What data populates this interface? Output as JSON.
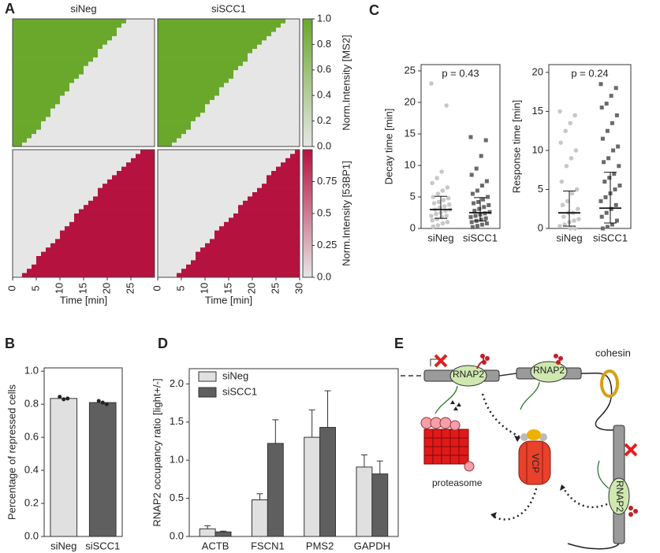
{
  "panel_labels": [
    "A",
    "B",
    "C",
    "D",
    "E"
  ],
  "chart_data": [
    {
      "type": "heatmap",
      "xlim": [
        0,
        30
      ],
      "fill": "before",
      "colorbar": {
        "label": "Norm.Intensity [MS2]",
        "lim": [
          0,
          1
        ],
        "colors": [
          "#e6e6e6",
          "#6aa82c"
        ],
        "ticks": [
          {
            "value": 0,
            "label": "0.0"
          },
          0.2,
          0.4,
          0.6,
          0.8,
          {
            "value": 1,
            "label": "1.0"
          }
        ]
      },
      "panels": [
        {
          "title": "siNeg",
          "rows": [
            24,
            23,
            22,
            22,
            21,
            20,
            19,
            18,
            18,
            17,
            16,
            15,
            15,
            14,
            13,
            12,
            12,
            11,
            10,
            10,
            9,
            8,
            8,
            7,
            6,
            6,
            5,
            4,
            3,
            2
          ]
        },
        {
          "title": "siSCC1",
          "rows": [
            27,
            26,
            25,
            24,
            23,
            22,
            21,
            20,
            19,
            19,
            18,
            17,
            16,
            16,
            15,
            14,
            13,
            13,
            12,
            11,
            10,
            10,
            9,
            8,
            7,
            7,
            6,
            5,
            4,
            3
          ]
        }
      ]
    },
    {
      "type": "heatmap",
      "xlim": [
        0,
        30
      ],
      "fill": "after",
      "colorbar": {
        "label": "Norm.Intensity [53BP1]",
        "lim": [
          0,
          1
        ],
        "colors": [
          "#e6e6e6",
          "#b5123f"
        ],
        "ticks": [
          {
            "value": 0,
            "label": "0.0"
          },
          0.25,
          0.5,
          0.75
        ]
      },
      "panels": [
        {
          "rows": [
            27,
            26,
            25,
            24,
            23,
            22,
            21,
            20,
            19,
            18,
            18,
            17,
            16,
            15,
            14,
            13,
            13,
            12,
            11,
            10,
            10,
            9,
            8,
            7,
            6,
            5,
            5,
            4,
            3,
            2
          ],
          "xticks": [
            0,
            5,
            10,
            15,
            20,
            25
          ],
          "xlabel": "Time [min]"
        },
        {
          "rows": [
            29,
            28,
            27,
            26,
            25,
            24,
            23,
            23,
            22,
            21,
            20,
            19,
            18,
            17,
            17,
            16,
            15,
            14,
            13,
            12,
            12,
            11,
            10,
            9,
            8,
            8,
            7,
            6,
            5,
            4
          ],
          "xticks": [
            0,
            5,
            10,
            15,
            20,
            25,
            30
          ],
          "xlabel": "Time [min]"
        }
      ]
    },
    {
      "type": "bar",
      "ylabel": "Percentage of repressed cells",
      "categories": [
        "siNeg",
        "siSCC1"
      ],
      "values": [
        0.835,
        0.81
      ],
      "colors": [
        "#e0e0e0",
        "#5f5f5f"
      ],
      "points": [
        [
          0.845,
          0.83,
          0.835
        ],
        [
          0.82,
          0.81,
          0.8
        ]
      ],
      "ylim": [
        0,
        1.02
      ],
      "yticks": [
        {
          "value": 0,
          "label": "0.0"
        },
        0.2,
        0.4,
        0.6,
        0.8,
        {
          "value": 1,
          "label": "1.0"
        }
      ]
    },
    {
      "type": "scatter",
      "ylabel": "Decay time [min]",
      "annotation": "p = 0.43",
      "categories": [
        "siNeg",
        "siSCC1"
      ],
      "groups": [
        {
          "color": "#c8c8c8",
          "marker": "circle",
          "values": [
            23,
            19.5,
            9,
            8,
            7.2,
            6.5,
            6,
            5.5,
            5,
            4.8,
            4.5,
            4.2,
            4,
            3.8,
            3.5,
            3.3,
            3,
            3,
            2.8,
            2.5,
            2.3,
            2,
            2,
            1.8,
            1.5,
            1.3,
            1,
            0.8,
            0.5,
            0.3
          ]
        },
        {
          "color": "#6a6a6a",
          "marker": "square",
          "values": [
            14.5,
            14,
            11.5,
            9.5,
            8.5,
            7.5,
            6.8,
            6,
            5.5,
            5,
            4.6,
            4.2,
            4,
            3.7,
            3.4,
            3.1,
            2.8,
            2.6,
            2.4,
            2.2,
            2,
            1.8,
            1.6,
            1.4,
            1.2,
            1,
            0.8,
            0.6,
            0.4,
            0.2
          ]
        }
      ],
      "medians": [
        3,
        2.5
      ],
      "lower": [
        1.6,
        1.2
      ],
      "upper": [
        5.1,
        4.9
      ],
      "ylim": [
        0,
        26
      ],
      "yticks": [
        0,
        5,
        10,
        15,
        20,
        25
      ]
    },
    {
      "type": "scatter",
      "ylabel": "Response time [min]",
      "annotation": "p = 0.24",
      "categories": [
        "siNeg",
        "siSCC1"
      ],
      "groups": [
        {
          "color": "#c8c8c8",
          "marker": "circle",
          "values": [
            15,
            14.5,
            13.5,
            12.5,
            11,
            10,
            9,
            8,
            6,
            5,
            4.5,
            3.5,
            3,
            2.5,
            2,
            2,
            1.5,
            1.2,
            1,
            0.8,
            0.5,
            0.3,
            0,
            0
          ]
        },
        {
          "color": "#6a6a6a",
          "marker": "square",
          "values": [
            18.5,
            18,
            17,
            16,
            15.5,
            14.5,
            13.5,
            12.5,
            11.5,
            10.5,
            10,
            9,
            8.5,
            8,
            7,
            6.5,
            6,
            5.5,
            5,
            4.5,
            4,
            3.5,
            3,
            2.5,
            2,
            1.5,
            1,
            0.5,
            0.2,
            0
          ]
        }
      ],
      "medians": [
        2,
        2.6
      ],
      "lower": [
        0.3,
        0.7
      ],
      "upper": [
        4.8,
        7.2
      ],
      "ylim": [
        0,
        21
      ],
      "yticks": [
        0,
        5,
        10,
        15,
        20
      ]
    },
    {
      "type": "bar",
      "ylabel": "RNAP2 occupancy ratio [light+/-]",
      "legend": "upper left",
      "categories": [
        "ACTB",
        "FSCN1",
        "PMS2",
        "GAPDH"
      ],
      "series": [
        {
          "name": "siNeg",
          "color": "#e0e0e0",
          "values": [
            0.1,
            0.48,
            1.3,
            0.91
          ],
          "errors": [
            0.04,
            0.08,
            0.36,
            0.16
          ]
        },
        {
          "name": "siSCC1",
          "color": "#5f5f5f",
          "values": [
            0.06,
            1.22,
            1.43,
            0.82
          ],
          "errors": [
            0.01,
            0.31,
            0.48,
            0.17
          ]
        }
      ],
      "ylim": [
        0,
        2.2
      ],
      "yticks": [
        {
          "value": 0,
          "label": "0.0"
        },
        0.5,
        {
          "value": 1,
          "label": "1.0"
        },
        1.5,
        {
          "value": 2,
          "label": "2.0"
        }
      ]
    }
  ],
  "diagram": {
    "rnap2": [
      "RNAP2",
      "RNAP2",
      "RNAP2"
    ],
    "cohesin": "cohesin",
    "vcp": "VCP",
    "proteasome": "proteasome"
  }
}
